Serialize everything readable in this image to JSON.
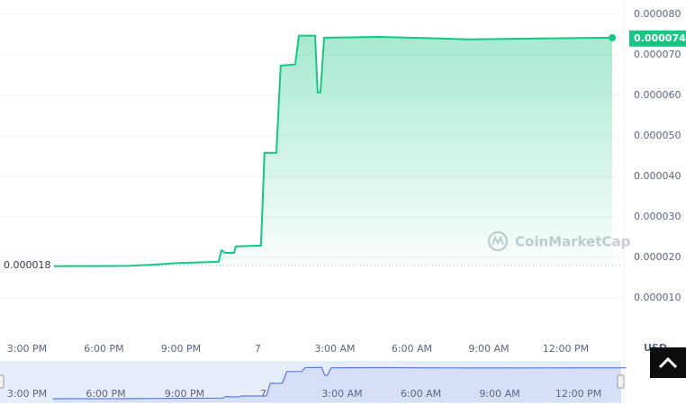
{
  "chart_data": {
    "type": "line",
    "color": "#16c784",
    "navigator_color": "#5a7bd8",
    "x": [
      3.98,
      6.96,
      7.98,
      8.89,
      10.47,
      10.58,
      10.72,
      11.07,
      11.14,
      12.12,
      12.26,
      12.72,
      12.89,
      13.46,
      13.6,
      14.23,
      14.33,
      14.44,
      14.58,
      16.68,
      19.14,
      20.19,
      23.0,
      25.81
    ],
    "values": [
      1.78e-05,
      1.79e-05,
      1.82e-05,
      1.86e-05,
      1.89e-05,
      2.18e-05,
      2.11e-05,
      2.11e-05,
      2.27e-05,
      2.29e-05,
      4.58e-05,
      4.58e-05,
      6.73e-05,
      6.76e-05,
      7.47e-05,
      7.47e-05,
      6.07e-05,
      6.07e-05,
      7.42e-05,
      7.44e-05,
      7.4e-05,
      7.38e-05,
      7.4e-05,
      7.42e-05
    ],
    "xlim": [
      1.95,
      26.16
    ],
    "xticks": [
      {
        "value": 3,
        "label": "3:00 PM"
      },
      {
        "value": 6,
        "label": "6:00 PM"
      },
      {
        "value": 9,
        "label": "9:00 PM"
      },
      {
        "value": 12,
        "label": "7"
      },
      {
        "value": 15,
        "label": "3:00 AM"
      },
      {
        "value": 18,
        "label": "6:00 AM"
      },
      {
        "value": 21,
        "label": "9:00 AM"
      },
      {
        "value": 24,
        "label": "12:00 PM"
      }
    ],
    "ylim": [
      0,
      8.35e-05
    ],
    "yticks": [
      {
        "value": 1e-05,
        "label": "0.000010"
      },
      {
        "value": 2e-05,
        "label": "0.000020"
      },
      {
        "value": 3e-05,
        "label": "0.000030"
      },
      {
        "value": 4e-05,
        "label": "0.000040"
      },
      {
        "value": 5e-05,
        "label": "0.000050"
      },
      {
        "value": 6e-05,
        "label": "0.000060"
      },
      {
        "value": 7e-05,
        "label": "0.000070"
      },
      {
        "value": 8e-05,
        "label": "0.000080"
      }
    ],
    "grid": true,
    "open_price": {
      "value": 1.8e-05,
      "label": "0.000018"
    },
    "last_price": {
      "value": 7.4e-05,
      "label": "0.000074"
    },
    "currency": "USD",
    "watermark": "CoinMarketCap"
  }
}
